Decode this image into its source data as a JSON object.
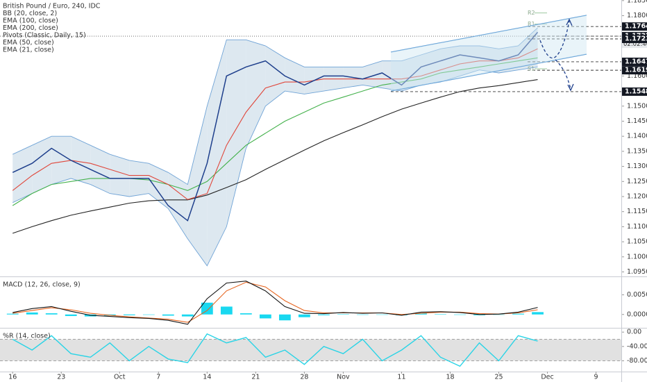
{
  "chart_data": [
    {
      "type": "line",
      "title": "British Pound / Euro, 240, IDC",
      "x": [
        0,
        2,
        4,
        6,
        8,
        10,
        12,
        14,
        16,
        18,
        20,
        22,
        24,
        26,
        28,
        30,
        32,
        34,
        36,
        38,
        40,
        42,
        44,
        46,
        48,
        50,
        52,
        54
      ],
      "xlim": [
        -1.3,
        62.6
      ],
      "xticks": [
        {
          "value": 0,
          "label": "16"
        },
        {
          "value": 5,
          "label": "23"
        },
        {
          "value": 11,
          "label": "Oct"
        },
        {
          "value": 15,
          "label": "7"
        },
        {
          "value": 20,
          "label": "14"
        },
        {
          "value": 25,
          "label": "21"
        },
        {
          "value": 30,
          "label": "28"
        },
        {
          "value": 34,
          "label": "Nov"
        },
        {
          "value": 40,
          "label": "11"
        },
        {
          "value": 45,
          "label": "18"
        },
        {
          "value": 50,
          "label": "25"
        },
        {
          "value": 55,
          "label": "Dec"
        },
        {
          "value": 60,
          "label": "9"
        }
      ],
      "ylim": [
        1.0935,
        1.1852
      ],
      "yticks": [
        {
          "value": 1.185,
          "label": "1.1850"
        },
        {
          "value": 1.18,
          "label": "1.1800"
        },
        {
          "value": 1.16,
          "label": "1.1600"
        },
        {
          "value": 1.155,
          "label": "1.1550"
        },
        {
          "value": 1.15,
          "label": "1.1500"
        },
        {
          "value": 1.145,
          "label": "1.1450"
        },
        {
          "value": 1.14,
          "label": "1.1400"
        },
        {
          "value": 1.135,
          "label": "1.1350"
        },
        {
          "value": 1.13,
          "label": "1.1300"
        },
        {
          "value": 1.125,
          "label": "1.1250"
        },
        {
          "value": 1.12,
          "label": "1.1200"
        },
        {
          "value": 1.115,
          "label": "1.1150"
        },
        {
          "value": 1.11,
          "label": "1.1100"
        },
        {
          "value": 1.105,
          "label": "1.1050"
        },
        {
          "value": 1.1,
          "label": "1.1000"
        },
        {
          "value": 1.095,
          "label": "1.0950"
        }
      ],
      "price": {
        "color": "#1e3f8c",
        "values": [
          1.128,
          1.131,
          1.136,
          1.132,
          1.129,
          1.126,
          1.126,
          1.126,
          1.117,
          1.112,
          1.131,
          1.16,
          1.163,
          1.165,
          1.16,
          1.157,
          1.16,
          1.16,
          1.159,
          1.161,
          1.157,
          1.163,
          1.165,
          1.167,
          1.166,
          1.165,
          1.167,
          1.1745
        ]
      },
      "bands": {
        "name": "BB (20, close, 2)",
        "color": "#6fa3d6",
        "fill": "#dde8f0",
        "upper": [
          1.134,
          1.137,
          1.14,
          1.14,
          1.137,
          1.134,
          1.132,
          1.131,
          1.128,
          1.124,
          1.15,
          1.172,
          1.172,
          1.17,
          1.166,
          1.163,
          1.163,
          1.163,
          1.163,
          1.165,
          1.165,
          1.167,
          1.169,
          1.17,
          1.17,
          1.169,
          1.17,
          1.176
        ],
        "lower": [
          1.118,
          1.121,
          1.124,
          1.126,
          1.124,
          1.121,
          1.12,
          1.121,
          1.116,
          1.106,
          1.097,
          1.11,
          1.136,
          1.15,
          1.155,
          1.154,
          1.155,
          1.156,
          1.157,
          1.156,
          1.155,
          1.157,
          1.158,
          1.16,
          1.162,
          1.161,
          1.162,
          1.163
        ]
      },
      "series": [
        {
          "name": "EMA (200, close)",
          "color": "#222222",
          "values": [
            1.1078,
            1.11,
            1.112,
            1.1138,
            1.1152,
            1.1165,
            1.1178,
            1.1186,
            1.1189,
            1.1189,
            1.1205,
            1.123,
            1.1256,
            1.129,
            1.1322,
            1.1354,
            1.1385,
            1.1412,
            1.1438,
            1.1465,
            1.149,
            1.151,
            1.153,
            1.1548,
            1.156,
            1.1568,
            1.1578,
            1.1588
          ]
        },
        {
          "name": "EMA (50, close)",
          "color": "#43b14b",
          "values": [
            1.117,
            1.121,
            1.124,
            1.125,
            1.126,
            1.126,
            1.126,
            1.1255,
            1.124,
            1.122,
            1.125,
            1.131,
            1.137,
            1.141,
            1.145,
            1.148,
            1.151,
            1.153,
            1.155,
            1.157,
            1.158,
            1.159,
            1.161,
            1.162,
            1.163,
            1.164,
            1.165,
            1.166
          ]
        },
        {
          "name": "EMA (21, close)",
          "color": "#e0463a",
          "values": [
            1.122,
            1.127,
            1.131,
            1.132,
            1.131,
            1.129,
            1.127,
            1.127,
            1.124,
            1.119,
            1.121,
            1.137,
            1.148,
            1.156,
            1.158,
            1.158,
            1.159,
            1.159,
            1.159,
            1.159,
            1.159,
            1.16,
            1.162,
            1.164,
            1.165,
            1.165,
            1.166,
            1.169
          ]
        }
      ],
      "notes": [
        "EMA (100, close)",
        "Pivots (Classic, Daily, 15)"
      ],
      "pivots": [
        {
          "label": "R2",
          "value": 1.1809
        },
        {
          "label": "R1",
          "value": 1.1772
        },
        {
          "label": "S1",
          "value": 1.1624
        }
      ],
      "levels": [
        1.1764,
        1.1732,
        1.1723,
        1.1647,
        1.1619,
        1.1548
      ],
      "countdown": "02:02:46"
    },
    {
      "type": "macd",
      "title": "MACD (12, 26, close, 9)",
      "ylim": [
        -0.0034,
        0.0095
      ],
      "yticks": [
        {
          "value": 0.005,
          "label": "0.0050"
        },
        {
          "value": 0,
          "label": "0.0000"
        }
      ],
      "series": [
        {
          "color": "#111111",
          "values": [
            0.0005,
            0.0015,
            0.002,
            0.0008,
            -0.0002,
            -0.0005,
            -0.0008,
            -0.001,
            -0.0015,
            -0.0025,
            0.004,
            0.008,
            0.0085,
            0.006,
            0.002,
            0.0003,
            0.0002,
            0.0005,
            0.0003,
            0.0004,
            -0.0002,
            0.0006,
            0.0007,
            0.0005,
            0,
            0.0001,
            0.0006,
            0.0018
          ]
        },
        {
          "color": "#e6641e",
          "values": [
            0.0003,
            0.001,
            0.0017,
            0.0012,
            0.0003,
            -0.0002,
            -0.0006,
            -0.0009,
            -0.0012,
            -0.002,
            0.001,
            0.006,
            0.0082,
            0.007,
            0.0035,
            0.001,
            0.0004,
            0.0004,
            0.0004,
            0.0004,
            0,
            0.0003,
            0.0006,
            0.0006,
            0.0002,
            0.0001,
            0.0004,
            0.0012
          ]
        }
      ],
      "histogram": {
        "color": "#19d8f0",
        "values": [
          0.0002,
          0.0005,
          0.0003,
          -0.0004,
          -0.0005,
          -0.0003,
          -0.0002,
          -0.0001,
          -0.0003,
          -0.0005,
          0.003,
          0.002,
          0.0003,
          -0.001,
          -0.0015,
          -0.0007,
          -0.0002,
          0.0001,
          -0.0001,
          0,
          -0.0002,
          0.0003,
          0.0001,
          -0.0001,
          -0.0002,
          0,
          0.0002,
          0.0006
        ]
      }
    },
    {
      "type": "oscillator",
      "title": "%R (14, close)",
      "ylim": [
        -110,
        10
      ],
      "yticks": [
        {
          "value": 0,
          "label": "0.00"
        },
        {
          "value": -40,
          "label": "-40.00"
        },
        {
          "value": -80,
          "label": "-80.00"
        }
      ],
      "band": [
        -20,
        -80
      ],
      "series": [
        {
          "color": "#2ad4e6",
          "values": [
            -20,
            -50,
            -10,
            -60,
            -70,
            -30,
            -80,
            -40,
            -75,
            -85,
            -5,
            -30,
            -15,
            -70,
            -50,
            -90,
            -40,
            -60,
            -20,
            -80,
            -50,
            -10,
            -70,
            -95,
            -30,
            -80,
            -10,
            -25
          ]
        }
      ]
    }
  ]
}
